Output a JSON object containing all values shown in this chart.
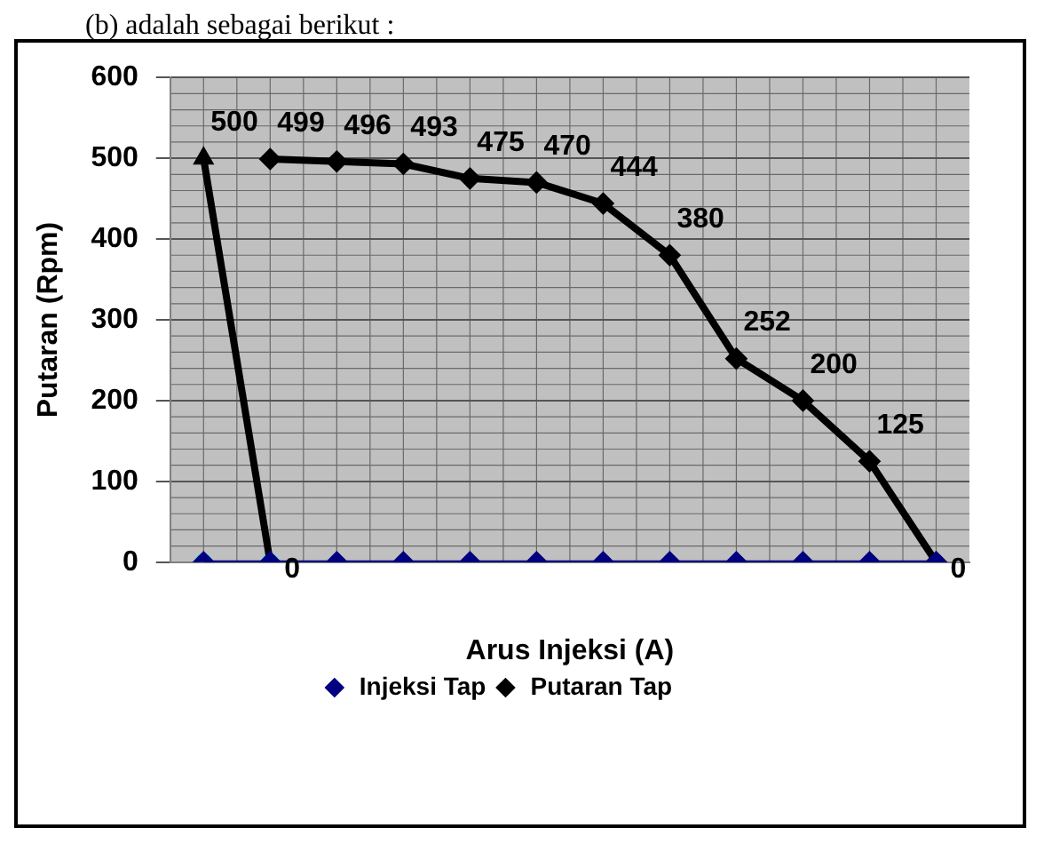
{
  "chart_data": {
    "type": "line",
    "annotations": [
      "(b) adalah sebagai berikut :"
    ],
    "xlabel": "Arus Injeksi (A)",
    "ylabel": "Putaran (Rpm)",
    "categories": [
      null,
      null,
      null,
      null,
      null,
      null,
      null,
      null,
      null,
      null,
      null,
      null
    ],
    "series": [
      {
        "name": "Injeksi Tap",
        "color": "#000080",
        "marker": "diamond",
        "values": [
          0,
          0,
          0,
          0,
          0,
          0,
          0,
          0,
          0,
          0,
          0,
          0
        ]
      },
      {
        "name": "Putaran Tap",
        "color": "#000000",
        "marker": "diamond",
        "values": [
          null,
          499,
          496,
          493,
          475,
          470,
          444,
          380,
          252,
          200,
          125,
          0
        ],
        "value_labels": [
          null,
          "499",
          "496",
          "493",
          "475",
          "470",
          "444",
          "380",
          "252",
          "200",
          "125",
          "0"
        ]
      },
      {
        "color": "#000000",
        "marker": "triangle",
        "values": [
          500,
          0,
          null,
          null,
          null,
          null,
          null,
          null,
          null,
          null,
          null,
          null
        ],
        "value_labels": [
          "500",
          "0",
          null,
          null,
          null,
          null,
          null,
          null,
          null,
          null,
          null,
          null
        ]
      },
      {
        "type": "scatter",
        "color": "#00ffff",
        "marker": "cross",
        "values": [
          0,
          0,
          null,
          null,
          null,
          null,
          null,
          null,
          null,
          null,
          null,
          null
        ]
      }
    ],
    "ylim": [
      0,
      600
    ],
    "yticks": [
      0,
      100,
      200,
      300,
      400,
      500,
      600
    ],
    "grid": true,
    "legend": "bottom"
  }
}
